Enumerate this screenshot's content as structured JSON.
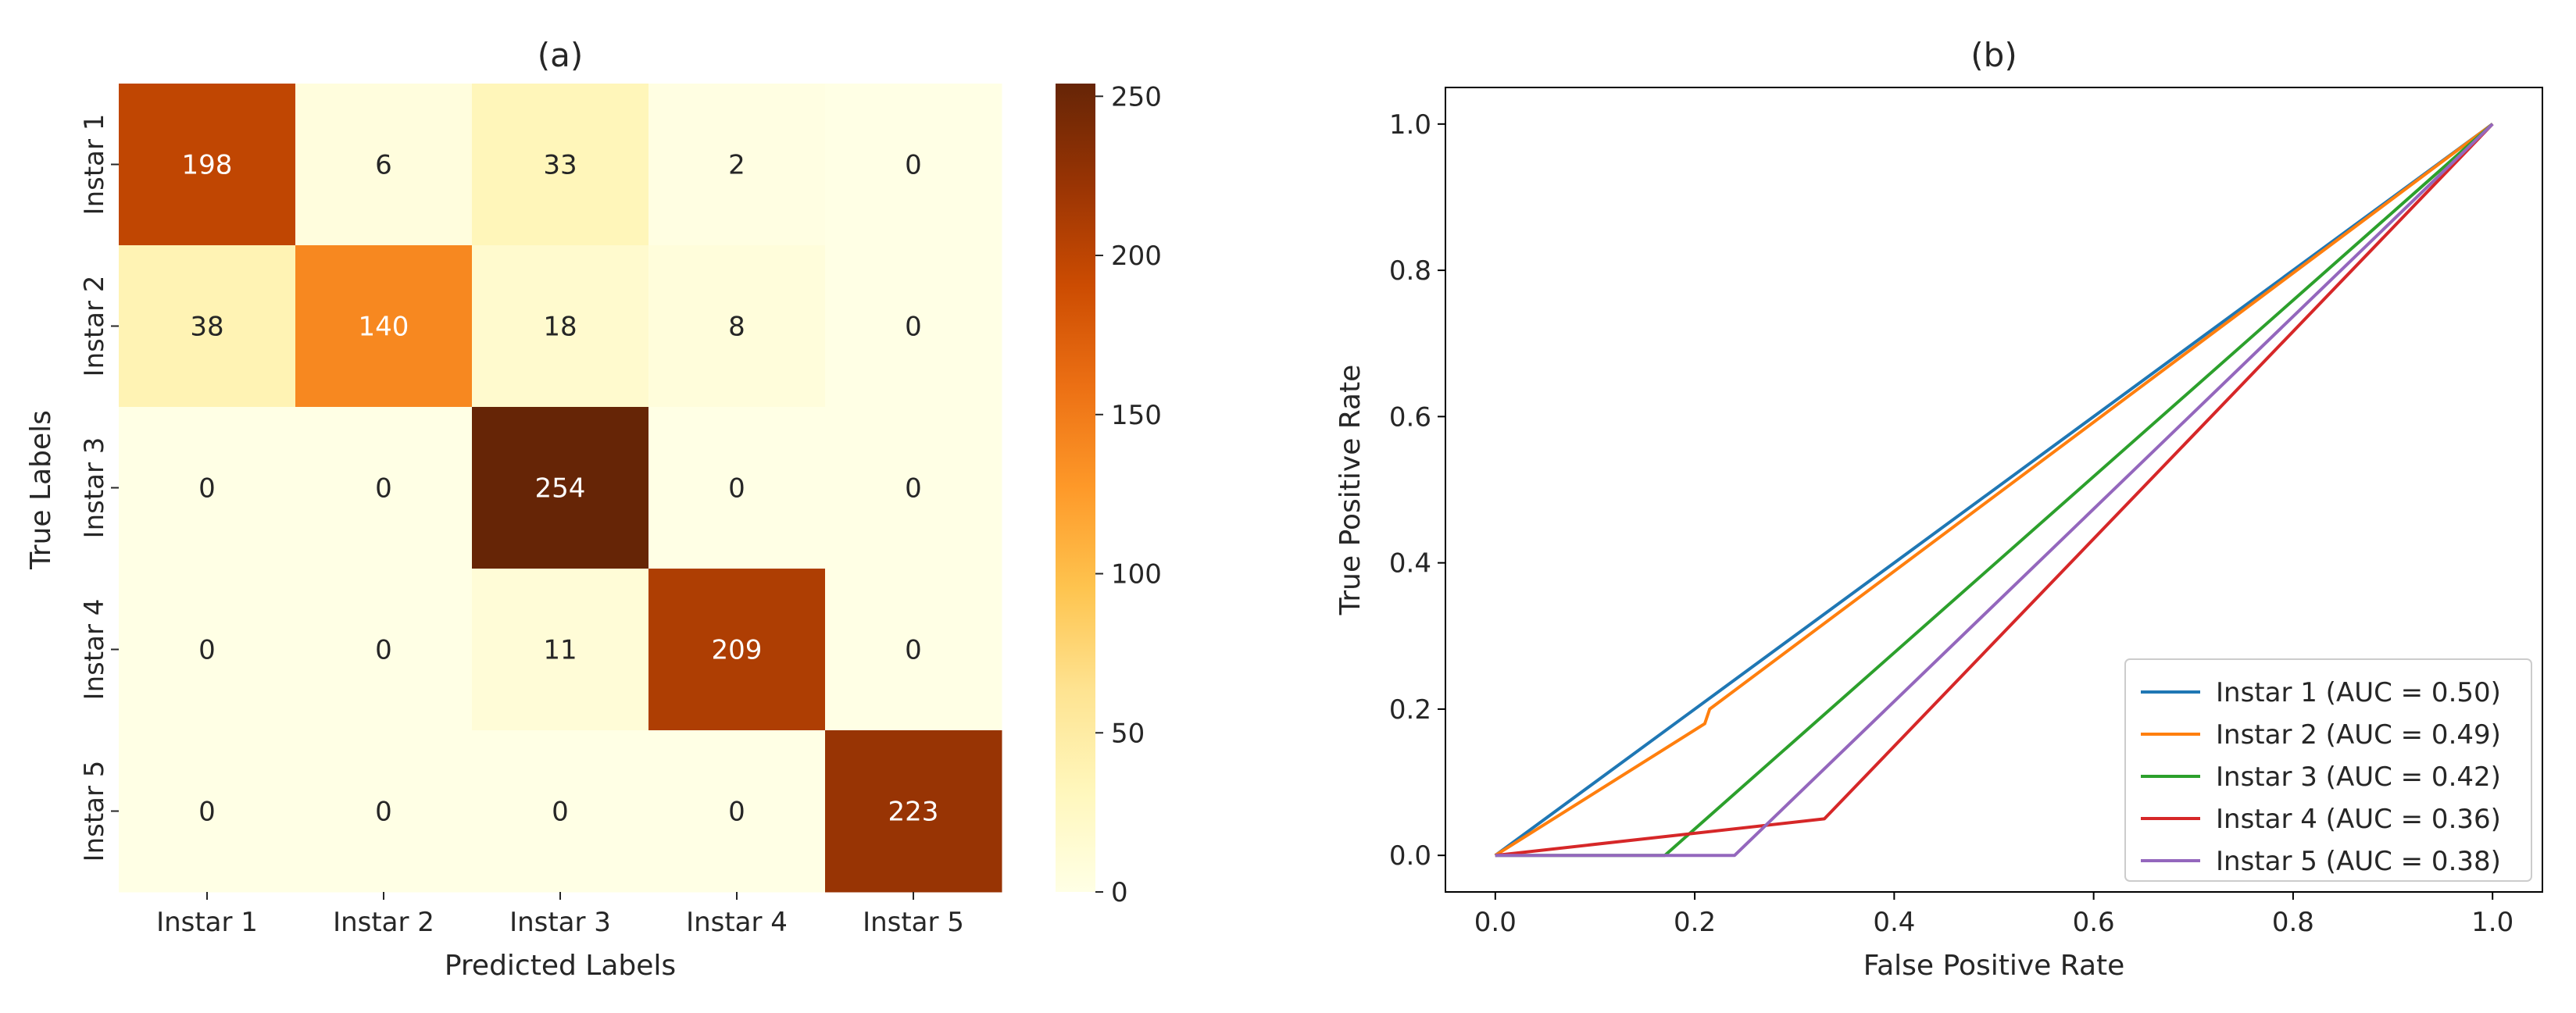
{
  "chart_data": [
    {
      "type": "heatmap",
      "title": "(a)",
      "xlabel": "Predicted Labels",
      "ylabel": "True Labels",
      "x_categories": [
        "Instar 1",
        "Instar 2",
        "Instar 3",
        "Instar 4",
        "Instar 5"
      ],
      "y_categories": [
        "Instar 1",
        "Instar 2",
        "Instar 3",
        "Instar 4",
        "Instar 5"
      ],
      "values": [
        [
          198,
          6,
          33,
          2,
          0
        ],
        [
          38,
          140,
          18,
          8,
          0
        ],
        [
          0,
          0,
          254,
          0,
          0
        ],
        [
          0,
          0,
          11,
          209,
          0
        ],
        [
          0,
          0,
          0,
          0,
          223
        ]
      ],
      "colorbar": {
        "min": 0,
        "max": 254,
        "ticks": [
          0,
          50,
          100,
          150,
          200,
          250
        ]
      },
      "colormap": "YlOrBr"
    },
    {
      "type": "line",
      "title": "(b)",
      "xlabel": "False Positive Rate",
      "ylabel": "True Positive Rate",
      "xlim": [
        -0.05,
        1.05
      ],
      "ylim": [
        -0.05,
        1.05
      ],
      "xticks": [
        0.0,
        0.2,
        0.4,
        0.6,
        0.8,
        1.0
      ],
      "yticks": [
        0.0,
        0.2,
        0.4,
        0.6,
        0.8,
        1.0
      ],
      "legend_position": "lower-right",
      "series": [
        {
          "name": "Instar 1 (AUC = 0.50)",
          "color": "#1f77b4",
          "points": [
            [
              0,
              0
            ],
            [
              1,
              1
            ]
          ]
        },
        {
          "name": "Instar 2 (AUC = 0.49)",
          "color": "#ff7f0e",
          "points": [
            [
              0,
              0
            ],
            [
              0.21,
              0.18
            ],
            [
              0.215,
              0.2
            ],
            [
              1,
              1
            ]
          ]
        },
        {
          "name": "Instar 3 (AUC = 0.42)",
          "color": "#2ca02c",
          "points": [
            [
              0,
              0
            ],
            [
              0.17,
              0
            ],
            [
              1,
              1
            ]
          ]
        },
        {
          "name": "Instar 4 (AUC = 0.36)",
          "color": "#d62728",
          "points": [
            [
              0,
              0
            ],
            [
              0.33,
              0.05
            ],
            [
              1,
              1
            ]
          ]
        },
        {
          "name": "Instar 5 (AUC = 0.38)",
          "color": "#9467bd",
          "points": [
            [
              0,
              0
            ],
            [
              0.24,
              0
            ],
            [
              1,
              1
            ]
          ]
        }
      ]
    }
  ]
}
